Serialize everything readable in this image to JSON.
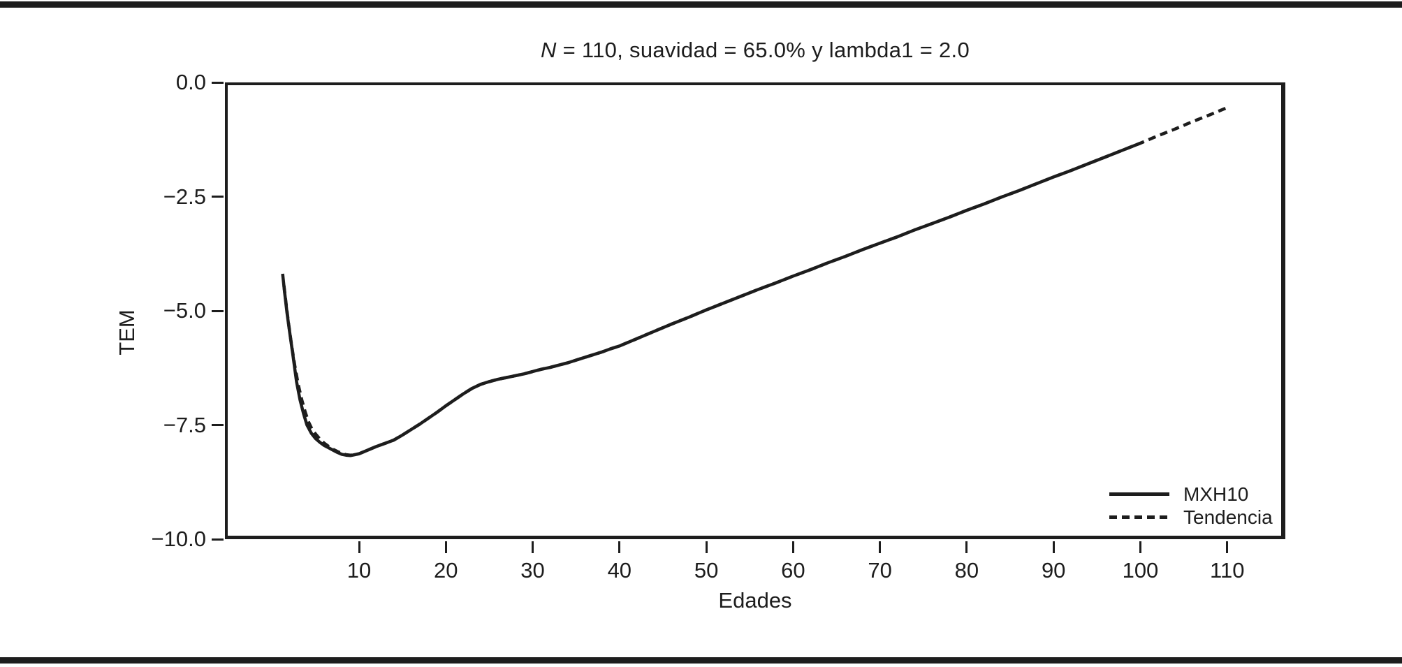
{
  "chart_data": {
    "type": "line",
    "title": "N = 110, suavidad = 65.0% y lambda1 = 2.0",
    "title_parts": {
      "italic": "N",
      "rest": " = 110, suavidad = 65.0% y lambda1 = 2.0"
    },
    "xlabel": "Edades",
    "ylabel": "TEM",
    "x_range": [
      -5.45,
      116.7
    ],
    "y_range": [
      -10.0,
      0.0
    ],
    "grid": false,
    "line_color": "#1d1d1d",
    "x_ticks": [
      10,
      20,
      30,
      40,
      50,
      60,
      70,
      80,
      90,
      100,
      110
    ],
    "x_tick_labels": [
      "10",
      "20",
      "30",
      "40",
      "50",
      "60",
      "70",
      "80",
      "90",
      "100",
      "110"
    ],
    "y_ticks": [
      0.0,
      -2.5,
      -5.0,
      -7.5,
      -10.0
    ],
    "y_tick_labels": [
      "0.0",
      "−2.5",
      "−5.0",
      "−7.5",
      "−10.0"
    ],
    "legend": {
      "position": "bottom-right-inside",
      "entries": [
        {
          "name": "MXH10",
          "style": "solid"
        },
        {
          "name": "Tendencia",
          "style": "dashed"
        }
      ]
    },
    "series": [
      {
        "name": "MXH10",
        "style": "solid",
        "points": [
          [
            1.2,
            -4.19
          ],
          [
            1.4,
            -4.55
          ],
          [
            1.7,
            -5.05
          ],
          [
            2,
            -5.46
          ],
          [
            2.4,
            -6.0
          ],
          [
            2.8,
            -6.55
          ],
          [
            3.2,
            -6.95
          ],
          [
            3.6,
            -7.25
          ],
          [
            4,
            -7.5
          ],
          [
            4.5,
            -7.68
          ],
          [
            5,
            -7.8
          ],
          [
            5.5,
            -7.88
          ],
          [
            6,
            -7.95
          ],
          [
            6.5,
            -8.0
          ],
          [
            7,
            -8.05
          ],
          [
            7.5,
            -8.1
          ],
          [
            8,
            -8.14
          ],
          [
            8.5,
            -8.16
          ],
          [
            9,
            -8.17
          ],
          [
            9.5,
            -8.15
          ],
          [
            10,
            -8.13
          ],
          [
            11,
            -8.05
          ],
          [
            12,
            -7.97
          ],
          [
            13,
            -7.9
          ],
          [
            14,
            -7.83
          ],
          [
            15,
            -7.72
          ],
          [
            16,
            -7.6
          ],
          [
            17,
            -7.48
          ],
          [
            18,
            -7.35
          ],
          [
            19,
            -7.22
          ],
          [
            20,
            -7.08
          ],
          [
            21,
            -6.95
          ],
          [
            22,
            -6.82
          ],
          [
            23,
            -6.7
          ],
          [
            24,
            -6.61
          ],
          [
            25,
            -6.55
          ],
          [
            26,
            -6.5
          ],
          [
            27,
            -6.46
          ],
          [
            28,
            -6.42
          ],
          [
            29,
            -6.38
          ],
          [
            30,
            -6.33
          ],
          [
            31,
            -6.28
          ],
          [
            32,
            -6.24
          ],
          [
            33,
            -6.19
          ],
          [
            34,
            -6.14
          ],
          [
            35,
            -6.08
          ],
          [
            36,
            -6.02
          ],
          [
            37,
            -5.96
          ],
          [
            38,
            -5.9
          ],
          [
            39,
            -5.83
          ],
          [
            40,
            -5.77
          ],
          [
            42,
            -5.61
          ],
          [
            44,
            -5.45
          ],
          [
            46,
            -5.29
          ],
          [
            48,
            -5.14
          ],
          [
            50,
            -4.98
          ],
          [
            52,
            -4.83
          ],
          [
            54,
            -4.68
          ],
          [
            56,
            -4.53
          ],
          [
            58,
            -4.39
          ],
          [
            60,
            -4.24
          ],
          [
            62,
            -4.1
          ],
          [
            64,
            -3.95
          ],
          [
            66,
            -3.81
          ],
          [
            68,
            -3.66
          ],
          [
            70,
            -3.52
          ],
          [
            72,
            -3.38
          ],
          [
            74,
            -3.23
          ],
          [
            76,
            -3.09
          ],
          [
            78,
            -2.95
          ],
          [
            80,
            -2.8
          ],
          [
            82,
            -2.66
          ],
          [
            84,
            -2.51
          ],
          [
            86,
            -2.37
          ],
          [
            88,
            -2.22
          ],
          [
            90,
            -2.07
          ],
          [
            92,
            -1.93
          ],
          [
            94,
            -1.78
          ],
          [
            96,
            -1.63
          ],
          [
            98,
            -1.48
          ],
          [
            100,
            -1.33
          ]
        ]
      },
      {
        "name": "Tendencia",
        "style": "dashed",
        "points": [
          [
            1.35,
            -4.45
          ],
          [
            1.6,
            -4.85
          ],
          [
            1.9,
            -5.3
          ],
          [
            2.2,
            -5.72
          ],
          [
            2.6,
            -6.2
          ],
          [
            3,
            -6.62
          ],
          [
            3.4,
            -6.95
          ],
          [
            3.8,
            -7.22
          ],
          [
            4.2,
            -7.44
          ],
          [
            4.6,
            -7.6
          ],
          [
            5,
            -7.7
          ],
          [
            5.5,
            -7.81
          ],
          [
            6,
            -7.9
          ],
          [
            6.5,
            -7.97
          ],
          [
            7,
            -8.03
          ],
          [
            7.5,
            -8.08
          ],
          [
            8,
            -8.12
          ],
          [
            8.5,
            -8.15
          ],
          [
            9,
            -8.16
          ],
          [
            9.5,
            -8.15
          ],
          [
            10,
            -8.13
          ],
          [
            11,
            -8.05
          ],
          [
            12,
            -7.97
          ],
          [
            13,
            -7.9
          ],
          [
            14,
            -7.83
          ],
          [
            15,
            -7.72
          ],
          [
            16,
            -7.6
          ],
          [
            17,
            -7.48
          ],
          [
            18,
            -7.35
          ],
          [
            19,
            -7.22
          ],
          [
            20,
            -7.08
          ],
          [
            21,
            -6.95
          ],
          [
            22,
            -6.82
          ],
          [
            23,
            -6.7
          ],
          [
            24,
            -6.61
          ],
          [
            25,
            -6.55
          ],
          [
            26,
            -6.5
          ],
          [
            27,
            -6.46
          ],
          [
            28,
            -6.42
          ],
          [
            29,
            -6.38
          ],
          [
            30,
            -6.33
          ],
          [
            31,
            -6.28
          ],
          [
            32,
            -6.24
          ],
          [
            33,
            -6.19
          ],
          [
            34,
            -6.14
          ],
          [
            35,
            -6.08
          ],
          [
            36,
            -6.02
          ],
          [
            37,
            -5.96
          ],
          [
            38,
            -5.9
          ],
          [
            39,
            -5.83
          ],
          [
            40,
            -5.77
          ],
          [
            42,
            -5.61
          ],
          [
            44,
            -5.45
          ],
          [
            46,
            -5.29
          ],
          [
            48,
            -5.14
          ],
          [
            50,
            -4.98
          ],
          [
            52,
            -4.83
          ],
          [
            54,
            -4.68
          ],
          [
            56,
            -4.53
          ],
          [
            58,
            -4.39
          ],
          [
            60,
            -4.24
          ],
          [
            62,
            -4.1
          ],
          [
            64,
            -3.95
          ],
          [
            66,
            -3.81
          ],
          [
            68,
            -3.66
          ],
          [
            70,
            -3.52
          ],
          [
            72,
            -3.38
          ],
          [
            74,
            -3.23
          ],
          [
            76,
            -3.09
          ],
          [
            78,
            -2.95
          ],
          [
            80,
            -2.8
          ],
          [
            82,
            -2.66
          ],
          [
            84,
            -2.51
          ],
          [
            86,
            -2.37
          ],
          [
            88,
            -2.22
          ],
          [
            90,
            -2.07
          ],
          [
            92,
            -1.93
          ],
          [
            94,
            -1.78
          ],
          [
            96,
            -1.63
          ],
          [
            98,
            -1.48
          ],
          [
            100,
            -1.33
          ],
          [
            102,
            -1.17
          ],
          [
            104,
            -1.02
          ],
          [
            106,
            -0.86
          ],
          [
            108,
            -0.71
          ],
          [
            110,
            -0.55
          ]
        ]
      }
    ]
  }
}
